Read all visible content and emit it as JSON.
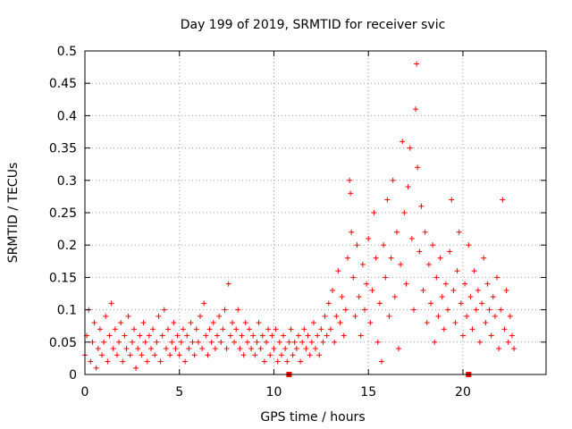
{
  "chart_data": {
    "type": "scatter",
    "title": "Day 199 of 2019, SRMTID for receiver svic",
    "xlabel": "GPS time / hours",
    "ylabel": "SRMTID / TECUs",
    "xlim": [
      0,
      24.4
    ],
    "ylim": [
      0,
      0.5
    ],
    "x_ticks": [
      0,
      5,
      10,
      15,
      20
    ],
    "x_tick_labels": [
      "0",
      "5",
      "10",
      "15",
      "20"
    ],
    "y_ticks": [
      0,
      0.05,
      0.1,
      0.15,
      0.2,
      0.25,
      0.3,
      0.35,
      0.4,
      0.45,
      0.5
    ],
    "y_tick_labels": [
      "0",
      "0.05",
      "0.1",
      "0.15",
      "0.2",
      "0.25",
      "0.3",
      "0.35",
      "0.4",
      "0.45",
      "0.5"
    ],
    "grid": true,
    "marker": "+",
    "color": "#ff0000",
    "square_markers": [
      {
        "x": 10.8,
        "y": 0
      },
      {
        "x": 20.3,
        "y": 0
      }
    ],
    "series": [
      {
        "name": "SRMTID",
        "points": [
          [
            0.0,
            0.03
          ],
          [
            0.1,
            0.06
          ],
          [
            0.2,
            0.1
          ],
          [
            0.3,
            0.02
          ],
          [
            0.4,
            0.05
          ],
          [
            0.5,
            0.08
          ],
          [
            0.6,
            0.01
          ],
          [
            0.7,
            0.04
          ],
          [
            0.8,
            0.07
          ],
          [
            0.9,
            0.03
          ],
          [
            1.0,
            0.05
          ],
          [
            1.1,
            0.09
          ],
          [
            1.2,
            0.02
          ],
          [
            1.3,
            0.06
          ],
          [
            1.4,
            0.11
          ],
          [
            1.5,
            0.04
          ],
          [
            1.6,
            0.07
          ],
          [
            1.7,
            0.03
          ],
          [
            1.8,
            0.05
          ],
          [
            1.9,
            0.08
          ],
          [
            2.0,
            0.02
          ],
          [
            2.1,
            0.06
          ],
          [
            2.2,
            0.04
          ],
          [
            2.3,
            0.09
          ],
          [
            2.4,
            0.03
          ],
          [
            2.5,
            0.05
          ],
          [
            2.6,
            0.07
          ],
          [
            2.7,
            0.01
          ],
          [
            2.8,
            0.04
          ],
          [
            2.9,
            0.06
          ],
          [
            3.0,
            0.03
          ],
          [
            3.1,
            0.08
          ],
          [
            3.2,
            0.05
          ],
          [
            3.3,
            0.02
          ],
          [
            3.4,
            0.06
          ],
          [
            3.5,
            0.04
          ],
          [
            3.6,
            0.07
          ],
          [
            3.7,
            0.03
          ],
          [
            3.8,
            0.05
          ],
          [
            3.9,
            0.09
          ],
          [
            4.0,
            0.02
          ],
          [
            4.1,
            0.06
          ],
          [
            4.2,
            0.1
          ],
          [
            4.3,
            0.04
          ],
          [
            4.4,
            0.07
          ],
          [
            4.5,
            0.03
          ],
          [
            4.6,
            0.05
          ],
          [
            4.7,
            0.08
          ],
          [
            4.8,
            0.04
          ],
          [
            4.9,
            0.06
          ],
          [
            5.0,
            0.03
          ],
          [
            5.1,
            0.05
          ],
          [
            5.2,
            0.07
          ],
          [
            5.3,
            0.02
          ],
          [
            5.4,
            0.06
          ],
          [
            5.5,
            0.04
          ],
          [
            5.6,
            0.08
          ],
          [
            5.7,
            0.05
          ],
          [
            5.8,
            0.03
          ],
          [
            5.9,
            0.07
          ],
          [
            6.0,
            0.05
          ],
          [
            6.1,
            0.09
          ],
          [
            6.2,
            0.04
          ],
          [
            6.3,
            0.11
          ],
          [
            6.4,
            0.06
          ],
          [
            6.5,
            0.03
          ],
          [
            6.6,
            0.07
          ],
          [
            6.7,
            0.05
          ],
          [
            6.8,
            0.08
          ],
          [
            6.9,
            0.04
          ],
          [
            7.0,
            0.06
          ],
          [
            7.1,
            0.09
          ],
          [
            7.2,
            0.05
          ],
          [
            7.3,
            0.07
          ],
          [
            7.4,
            0.1
          ],
          [
            7.5,
            0.04
          ],
          [
            7.6,
            0.14
          ],
          [
            7.7,
            0.06
          ],
          [
            7.8,
            0.08
          ],
          [
            7.9,
            0.05
          ],
          [
            8.0,
            0.07
          ],
          [
            8.1,
            0.1
          ],
          [
            8.2,
            0.04
          ],
          [
            8.3,
            0.06
          ],
          [
            8.4,
            0.03
          ],
          [
            8.5,
            0.08
          ],
          [
            8.6,
            0.05
          ],
          [
            8.7,
            0.07
          ],
          [
            8.8,
            0.04
          ],
          [
            8.9,
            0.06
          ],
          [
            9.0,
            0.03
          ],
          [
            9.1,
            0.05
          ],
          [
            9.2,
            0.08
          ],
          [
            9.3,
            0.04
          ],
          [
            9.4,
            0.06
          ],
          [
            9.5,
            0.02
          ],
          [
            9.6,
            0.05
          ],
          [
            9.7,
            0.07
          ],
          [
            9.8,
            0.03
          ],
          [
            9.9,
            0.06
          ],
          [
            10.0,
            0.04
          ],
          [
            10.1,
            0.07
          ],
          [
            10.2,
            0.02
          ],
          [
            10.3,
            0.05
          ],
          [
            10.4,
            0.03
          ],
          [
            10.5,
            0.06
          ],
          [
            10.6,
            0.04
          ],
          [
            10.7,
            0.02
          ],
          [
            10.8,
            0.05
          ],
          [
            10.9,
            0.07
          ],
          [
            11.0,
            0.03
          ],
          [
            11.1,
            0.05
          ],
          [
            11.2,
            0.04
          ],
          [
            11.3,
            0.06
          ],
          [
            11.4,
            0.02
          ],
          [
            11.5,
            0.05
          ],
          [
            11.6,
            0.07
          ],
          [
            11.7,
            0.04
          ],
          [
            11.8,
            0.06
          ],
          [
            11.9,
            0.03
          ],
          [
            12.0,
            0.05
          ],
          [
            12.1,
            0.08
          ],
          [
            12.2,
            0.04
          ],
          [
            12.3,
            0.06
          ],
          [
            12.4,
            0.03
          ],
          [
            12.5,
            0.07
          ],
          [
            12.6,
            0.05
          ],
          [
            12.7,
            0.09
          ],
          [
            12.8,
            0.06
          ],
          [
            12.9,
            0.11
          ],
          [
            13.0,
            0.07
          ],
          [
            13.1,
            0.13
          ],
          [
            13.2,
            0.05
          ],
          [
            13.3,
            0.09
          ],
          [
            13.4,
            0.16
          ],
          [
            13.5,
            0.08
          ],
          [
            13.6,
            0.12
          ],
          [
            13.7,
            0.06
          ],
          [
            13.8,
            0.1
          ],
          [
            13.9,
            0.18
          ],
          [
            14.0,
            0.3
          ],
          [
            14.05,
            0.28
          ],
          [
            14.1,
            0.22
          ],
          [
            14.2,
            0.15
          ],
          [
            14.3,
            0.09
          ],
          [
            14.4,
            0.2
          ],
          [
            14.5,
            0.12
          ],
          [
            14.6,
            0.06
          ],
          [
            14.7,
            0.17
          ],
          [
            14.8,
            0.1
          ],
          [
            14.9,
            0.14
          ],
          [
            15.0,
            0.21
          ],
          [
            15.1,
            0.08
          ],
          [
            15.2,
            0.13
          ],
          [
            15.3,
            0.25
          ],
          [
            15.4,
            0.18
          ],
          [
            15.5,
            0.05
          ],
          [
            15.6,
            0.11
          ],
          [
            15.7,
            0.02
          ],
          [
            15.8,
            0.2
          ],
          [
            15.9,
            0.15
          ],
          [
            16.0,
            0.27
          ],
          [
            16.1,
            0.09
          ],
          [
            16.2,
            0.18
          ],
          [
            16.3,
            0.3
          ],
          [
            16.4,
            0.12
          ],
          [
            16.5,
            0.22
          ],
          [
            16.6,
            0.04
          ],
          [
            16.7,
            0.17
          ],
          [
            16.8,
            0.36
          ],
          [
            16.9,
            0.25
          ],
          [
            17.0,
            0.14
          ],
          [
            17.1,
            0.29
          ],
          [
            17.2,
            0.35
          ],
          [
            17.3,
            0.21
          ],
          [
            17.4,
            0.1
          ],
          [
            17.5,
            0.41
          ],
          [
            17.55,
            0.48
          ],
          [
            17.6,
            0.32
          ],
          [
            17.7,
            0.19
          ],
          [
            17.8,
            0.26
          ],
          [
            17.9,
            0.13
          ],
          [
            18.0,
            0.22
          ],
          [
            18.1,
            0.08
          ],
          [
            18.2,
            0.17
          ],
          [
            18.3,
            0.11
          ],
          [
            18.4,
            0.2
          ],
          [
            18.5,
            0.05
          ],
          [
            18.6,
            0.15
          ],
          [
            18.7,
            0.09
          ],
          [
            18.8,
            0.18
          ],
          [
            18.9,
            0.12
          ],
          [
            19.0,
            0.07
          ],
          [
            19.1,
            0.14
          ],
          [
            19.2,
            0.1
          ],
          [
            19.3,
            0.19
          ],
          [
            19.4,
            0.27
          ],
          [
            19.5,
            0.13
          ],
          [
            19.6,
            0.08
          ],
          [
            19.7,
            0.16
          ],
          [
            19.8,
            0.22
          ],
          [
            19.9,
            0.11
          ],
          [
            20.0,
            0.06
          ],
          [
            20.1,
            0.14
          ],
          [
            20.2,
            0.09
          ],
          [
            20.3,
            0.2
          ],
          [
            20.4,
            0.12
          ],
          [
            20.5,
            0.07
          ],
          [
            20.6,
            0.16
          ],
          [
            20.7,
            0.1
          ],
          [
            20.8,
            0.13
          ],
          [
            20.9,
            0.05
          ],
          [
            21.0,
            0.11
          ],
          [
            21.1,
            0.18
          ],
          [
            21.2,
            0.08
          ],
          [
            21.3,
            0.14
          ],
          [
            21.4,
            0.1
          ],
          [
            21.5,
            0.06
          ],
          [
            21.6,
            0.12
          ],
          [
            21.7,
            0.09
          ],
          [
            21.8,
            0.15
          ],
          [
            21.9,
            0.04
          ],
          [
            22.0,
            0.1
          ],
          [
            22.1,
            0.27
          ],
          [
            22.2,
            0.07
          ],
          [
            22.3,
            0.13
          ],
          [
            22.4,
            0.05
          ],
          [
            22.5,
            0.09
          ],
          [
            22.6,
            0.06
          ],
          [
            22.7,
            0.04
          ]
        ]
      }
    ]
  }
}
